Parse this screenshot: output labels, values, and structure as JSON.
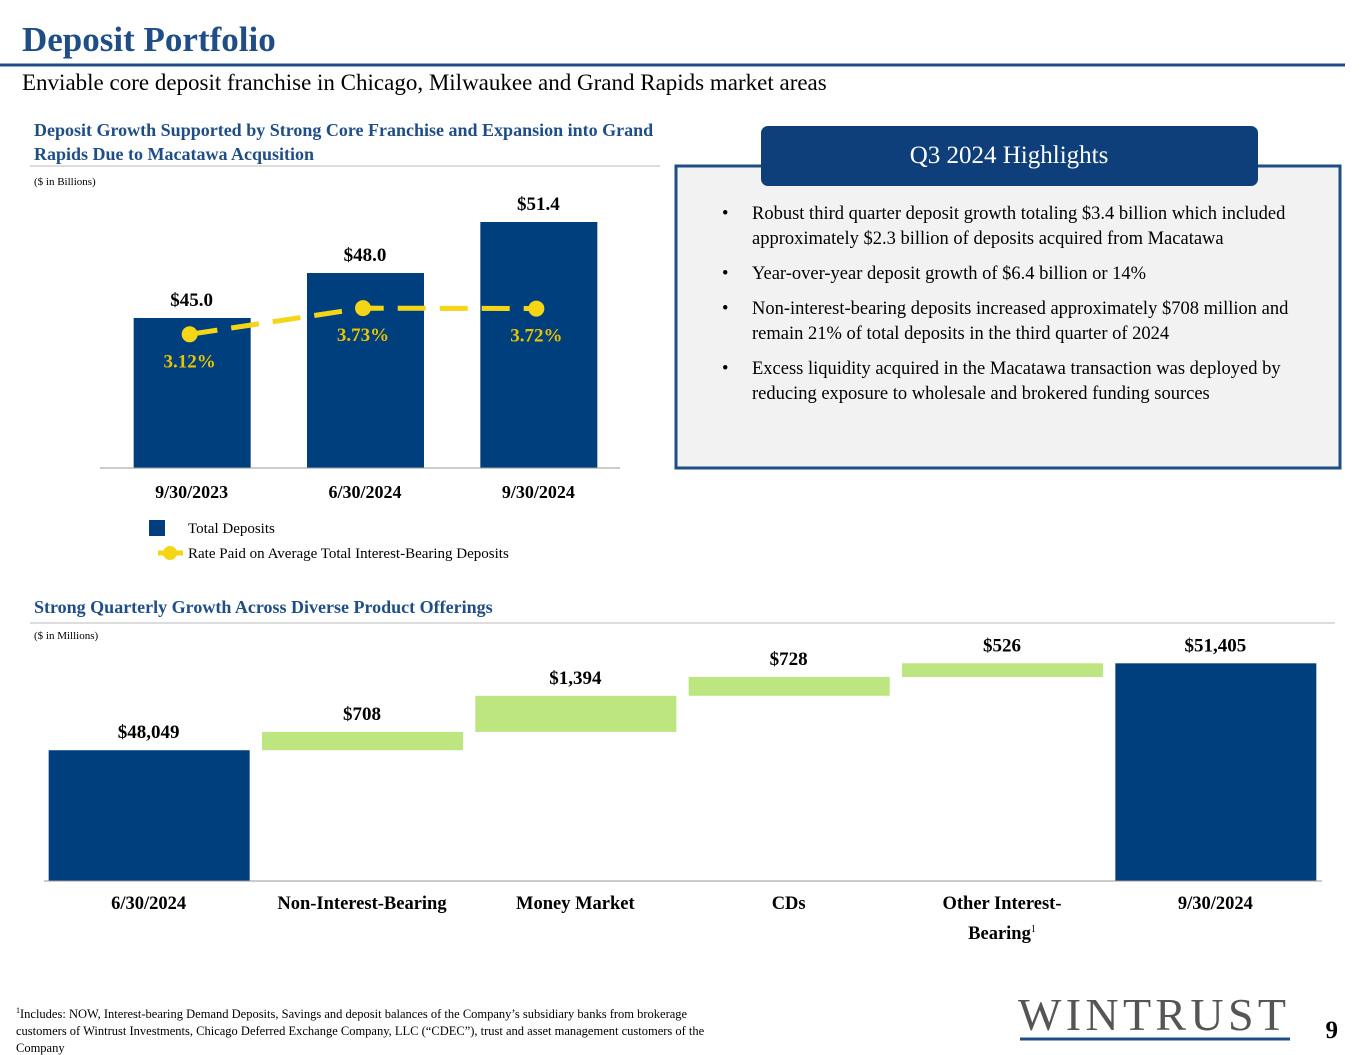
{
  "header": {
    "title": "Deposit Portfolio",
    "subtitle": "Enviable core deposit franchise in Chicago, Milwaukee and Grand Rapids market areas"
  },
  "chart_data": [
    {
      "type": "bar",
      "title": "Deposit Growth Supported by Strong Core Franchise and Expansion into Grand Rapids Due to Macatawa Acqusition",
      "subtitle": "($ in Billions)",
      "categories": [
        "9/30/2023",
        "6/30/2024",
        "9/30/2024"
      ],
      "series": [
        {
          "name": "Total Deposits",
          "type": "bar",
          "color": "#003f7d",
          "values": [
            45.0,
            48.0,
            51.4
          ],
          "value_labels": [
            "$45.0",
            "$48.0",
            "$51.4"
          ]
        },
        {
          "name": "Rate Paid on Average Total Interest-Bearing Deposits",
          "type": "line",
          "axis": "y2",
          "color": "#f5d616",
          "values": [
            3.12,
            3.73,
            3.72
          ],
          "value_labels": [
            "3.12%",
            "3.73%",
            "3.72%"
          ]
        }
      ],
      "ylim": [
        35,
        55
      ],
      "y2lim": [
        0,
        7
      ]
    },
    {
      "type": "waterfall",
      "title": "Strong Quarterly Growth Across Diverse Product Offerings",
      "subtitle": "($ in Millions)",
      "categories": [
        "6/30/2024",
        "Non-Interest-Bearing",
        "Money Market",
        "CDs",
        "Other Interest-Bearing",
        "9/30/2024"
      ],
      "values": [
        48049,
        708,
        1394,
        728,
        526,
        51405
      ],
      "value_labels": [
        "$48,049",
        "$708",
        "$1,394",
        "$728",
        "$526",
        "$51,405"
      ],
      "colors": [
        "#003f7d",
        "#bde580",
        "#bde580",
        "#bde580",
        "#bde580",
        "#003f7d"
      ],
      "ylim": [
        43000,
        53000
      ]
    }
  ],
  "highlights": {
    "title": "Q3 2024 Highlights",
    "bullets": [
      "Robust third quarter deposit growth totaling $3.4 billion which included approximately $2.3 billion of deposits acquired from Macatawa",
      "Year-over-year deposit growth of $6.4 billion or 14%",
      "Non-interest-bearing deposits increased approximately $708 million and remain 21% of total deposits in the third quarter of 2024",
      "Excess liquidity acquired in the Macatawa transaction was deployed by reducing exposure to wholesale and brokered funding sources"
    ]
  },
  "footnote": {
    "marker": "1",
    "text": "Includes: NOW, Interest-bearing Demand Deposits, Savings and deposit balances of the Company’s subsidiary banks from brokerage customers of Wintrust Investments, Chicago Deferred Exchange Company, LLC (“CDEC”), trust and asset management customers of the Company"
  },
  "logo": "WINTRUST",
  "page_number": "9"
}
